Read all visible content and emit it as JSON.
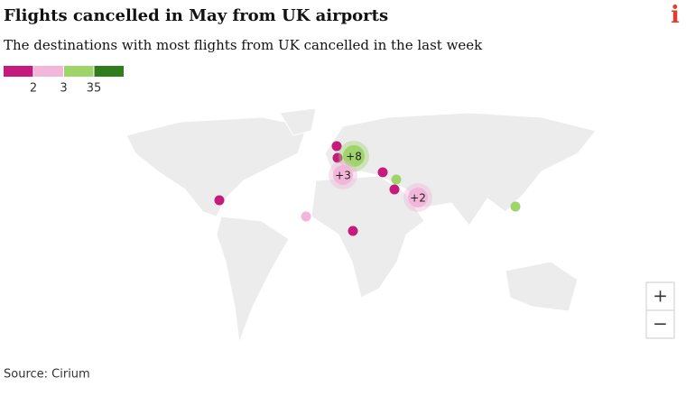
{
  "header": {
    "title": "Flights cancelled in May from UK airports",
    "subtitle": "The destinations with most flights from UK cancelled in the last week"
  },
  "legend": {
    "colors": [
      "#c51b7d",
      "#f1b6da",
      "#9fd46b",
      "#2f7d1c"
    ],
    "labels": [
      2,
      3,
      35
    ]
  },
  "map": {
    "clusters": [
      "+8",
      "+3",
      "+2"
    ]
  },
  "controls": {
    "zoom_in": "+",
    "zoom_out": "−"
  },
  "logo": "i",
  "footer": {
    "source": "Source: Cirium"
  }
}
